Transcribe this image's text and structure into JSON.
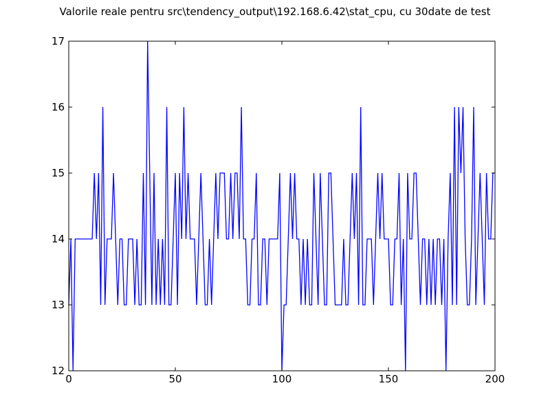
{
  "chart_data": {
    "type": "line",
    "title": "Valorile reale pentru src\\tendency_output\\192.168.6.42\\stat_cpu, cu 30date de test",
    "xlabel": "",
    "ylabel": "",
    "xlim": [
      0,
      200
    ],
    "ylim": [
      12,
      17
    ],
    "xticks": [
      0,
      50,
      100,
      150,
      200
    ],
    "yticks": [
      12,
      13,
      14,
      15,
      16,
      17
    ],
    "grid": false,
    "line_color": "#0000ff",
    "series": [
      {
        "x": [
          0,
          1,
          2,
          3,
          4,
          5,
          6,
          7,
          8,
          9,
          10,
          11,
          12,
          13,
          14,
          15,
          16,
          17,
          18,
          19,
          20,
          21,
          22,
          23,
          24,
          25,
          26,
          27,
          28,
          29,
          30,
          31,
          32,
          33,
          34,
          35,
          36,
          37,
          38,
          39,
          40,
          41,
          42,
          43,
          44,
          45,
          46,
          47,
          48,
          49,
          50,
          51,
          52,
          53,
          54,
          55,
          56,
          57,
          58,
          59,
          60,
          61,
          62,
          63,
          64,
          65,
          66,
          67,
          68,
          69,
          70,
          71,
          72,
          73,
          74,
          75,
          76,
          77,
          78,
          79,
          80,
          81,
          82,
          83,
          84,
          85,
          86,
          87,
          88,
          89,
          90,
          91,
          92,
          93,
          94,
          95,
          96,
          97,
          98,
          99,
          100,
          101,
          102,
          103,
          104,
          105,
          106,
          107,
          108,
          109,
          110,
          111,
          112,
          113,
          114,
          115,
          116,
          117,
          118,
          119,
          120,
          121,
          122,
          123,
          124,
          125,
          126,
          127,
          128,
          129,
          130,
          131,
          132,
          133,
          134,
          135,
          136,
          137,
          138,
          139,
          140,
          141,
          142,
          143,
          144,
          145,
          146,
          147,
          148,
          149,
          150,
          151,
          152,
          153,
          154,
          155,
          156,
          157,
          158,
          159,
          160,
          161,
          162,
          163,
          164,
          165,
          166,
          167,
          168,
          169,
          170,
          171,
          172,
          173,
          174,
          175,
          176,
          177,
          178,
          179,
          180,
          181,
          182,
          183,
          184,
          185,
          186,
          187,
          188,
          189,
          190,
          191,
          192,
          193,
          194,
          195,
          196,
          197,
          198,
          199,
          200
        ],
        "values": [
          13,
          14,
          12,
          14,
          14,
          14,
          14,
          14,
          14,
          14,
          14,
          14,
          15,
          14,
          15,
          13,
          16,
          13,
          14,
          14,
          14,
          15,
          14,
          13,
          14,
          14,
          13,
          13,
          14,
          14,
          14,
          13,
          14,
          13,
          13,
          15,
          13,
          17,
          15,
          13,
          15,
          13,
          14,
          13,
          14,
          13,
          16,
          13,
          13,
          14,
          15,
          13,
          15,
          14,
          16,
          14,
          15,
          14,
          14,
          14,
          13,
          14,
          15,
          14,
          13,
          13,
          14,
          13,
          14,
          15,
          14,
          15,
          15,
          15,
          14,
          14,
          15,
          14,
          15,
          15,
          14,
          16,
          14,
          14,
          13,
          13,
          14,
          14,
          15,
          13,
          13,
          14,
          14,
          13,
          14,
          14,
          14,
          14,
          14,
          15,
          12,
          13,
          13,
          14,
          15,
          14,
          15,
          14,
          14,
          13,
          14,
          13,
          14,
          13,
          13,
          15,
          14,
          13,
          15,
          14,
          13,
          13,
          15,
          15,
          14,
          13,
          13,
          13,
          13,
          14,
          13,
          13,
          14,
          15,
          14,
          15,
          13,
          16,
          13,
          13,
          14,
          14,
          14,
          13,
          14,
          15,
          14,
          15,
          14,
          14,
          14,
          13,
          13,
          14,
          14,
          15,
          13,
          14,
          12,
          15,
          14,
          14,
          15,
          15,
          14,
          13,
          14,
          14,
          13,
          14,
          13,
          14,
          13,
          14,
          14,
          13,
          14,
          12,
          14,
          15,
          13,
          16,
          13,
          16,
          15,
          16,
          14,
          13,
          13,
          14,
          16,
          13,
          14,
          15,
          14,
          13,
          15,
          14,
          14,
          15,
          15
        ]
      }
    ]
  }
}
